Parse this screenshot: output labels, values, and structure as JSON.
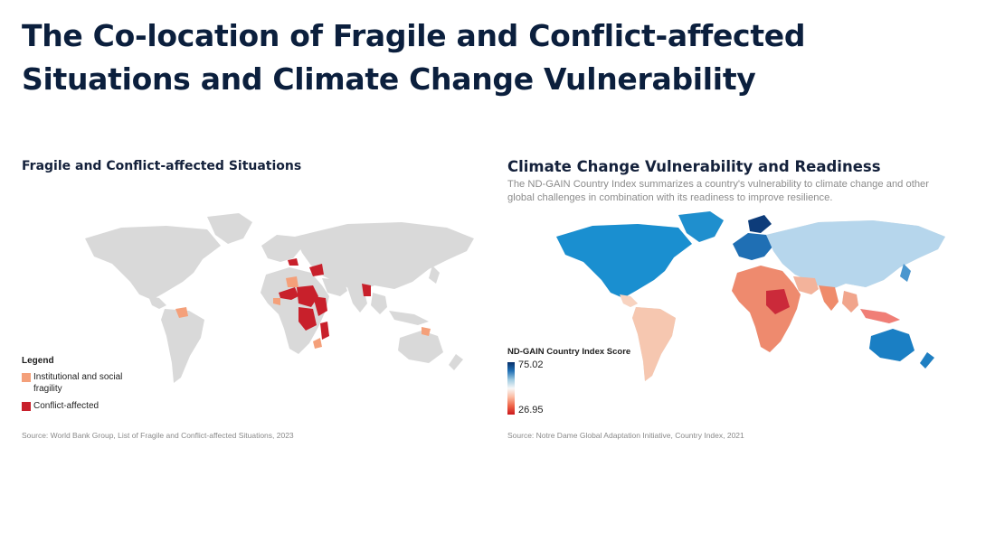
{
  "title": {
    "line1": "The Co-location of Fragile and Conflict-affected",
    "line2": "Situations and Climate Change Vulnerability"
  },
  "left_panel": {
    "title": "Fragile and Conflict-affected Situations",
    "legend": {
      "title": "Legend",
      "items": [
        {
          "label": "Institutional and social fragility",
          "color": "#f4a07a"
        },
        {
          "label": "Conflict-affected",
          "color": "#c8202b"
        }
      ]
    },
    "source": "Source: World Bank Group, List of Fragile and Conflict-affected Situations, 2023"
  },
  "right_panel": {
    "title": "Climate Change Vulnerability and Readiness",
    "subtitle_line1": "The ND-GAIN Country Index summarizes a country's vulnerability to climate change and other",
    "subtitle_line2": "global challenges in combination with its readiness to improve resilience.",
    "scale": {
      "title": "ND-GAIN Country Index Score",
      "max": "75.02",
      "min": "26.95"
    },
    "source": "Source: Notre Dame Global Adaptation Initiative, Country Index, 2021"
  },
  "colors": {
    "land": "#d9d9d9",
    "fragility": "#f4a07a",
    "conflict": "#c8202b",
    "high_score": "#08306b",
    "low_score": "#cb181d"
  }
}
